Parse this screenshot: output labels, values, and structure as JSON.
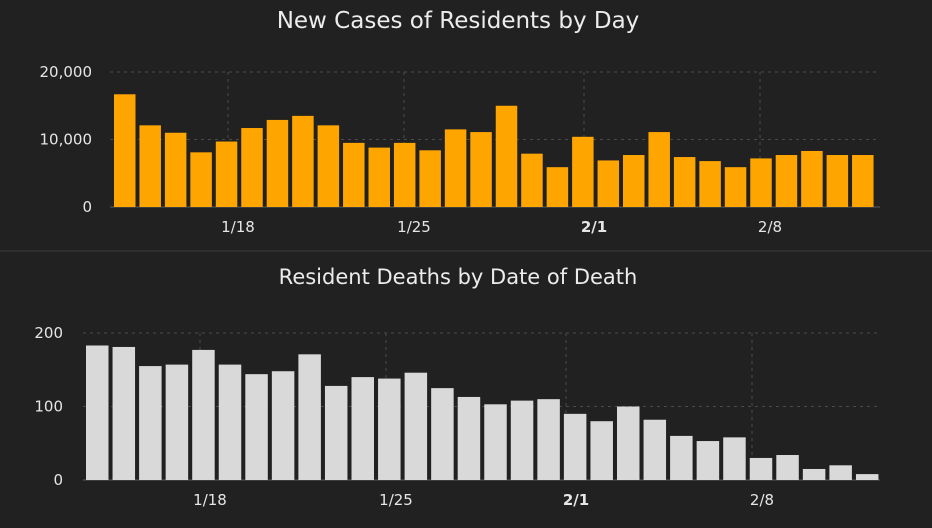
{
  "colors": {
    "background": "#212121",
    "cases_bar": "#FFA500",
    "deaths_bar": "#D9D9D9",
    "text": "#E6E6E6"
  },
  "chart_data": [
    {
      "type": "bar",
      "title": "New Cases of Residents by Day",
      "xlabel": "",
      "ylabel": "",
      "x_tick_labels": [
        "1/18",
        "1/25",
        "2/1",
        "2/8"
      ],
      "y_tick_labels": [
        "0",
        "10,000",
        "20,000"
      ],
      "ylim": [
        0,
        20000
      ],
      "grid": true,
      "values": [
        16700,
        12100,
        11000,
        8100,
        9700,
        11700,
        12900,
        13500,
        12100,
        9500,
        8800,
        9500,
        8400,
        11500,
        11100,
        15000,
        7900,
        5900,
        10400,
        6900,
        7700,
        11100,
        7400,
        6800,
        5900,
        7200,
        7700,
        8300,
        7700,
        7700
      ]
    },
    {
      "type": "bar",
      "title": "Resident Deaths by Date of Death",
      "xlabel": "",
      "ylabel": "",
      "x_tick_labels": [
        "1/18",
        "1/25",
        "2/1",
        "2/8"
      ],
      "y_tick_labels": [
        "0",
        "100",
        "200"
      ],
      "ylim": [
        0,
        200
      ],
      "grid": true,
      "values": [
        183,
        181,
        155,
        157,
        177,
        157,
        144,
        148,
        171,
        128,
        140,
        138,
        146,
        125,
        113,
        103,
        108,
        110,
        90,
        80,
        100,
        82,
        60,
        53,
        58,
        30,
        34,
        15,
        20,
        8
      ]
    }
  ]
}
